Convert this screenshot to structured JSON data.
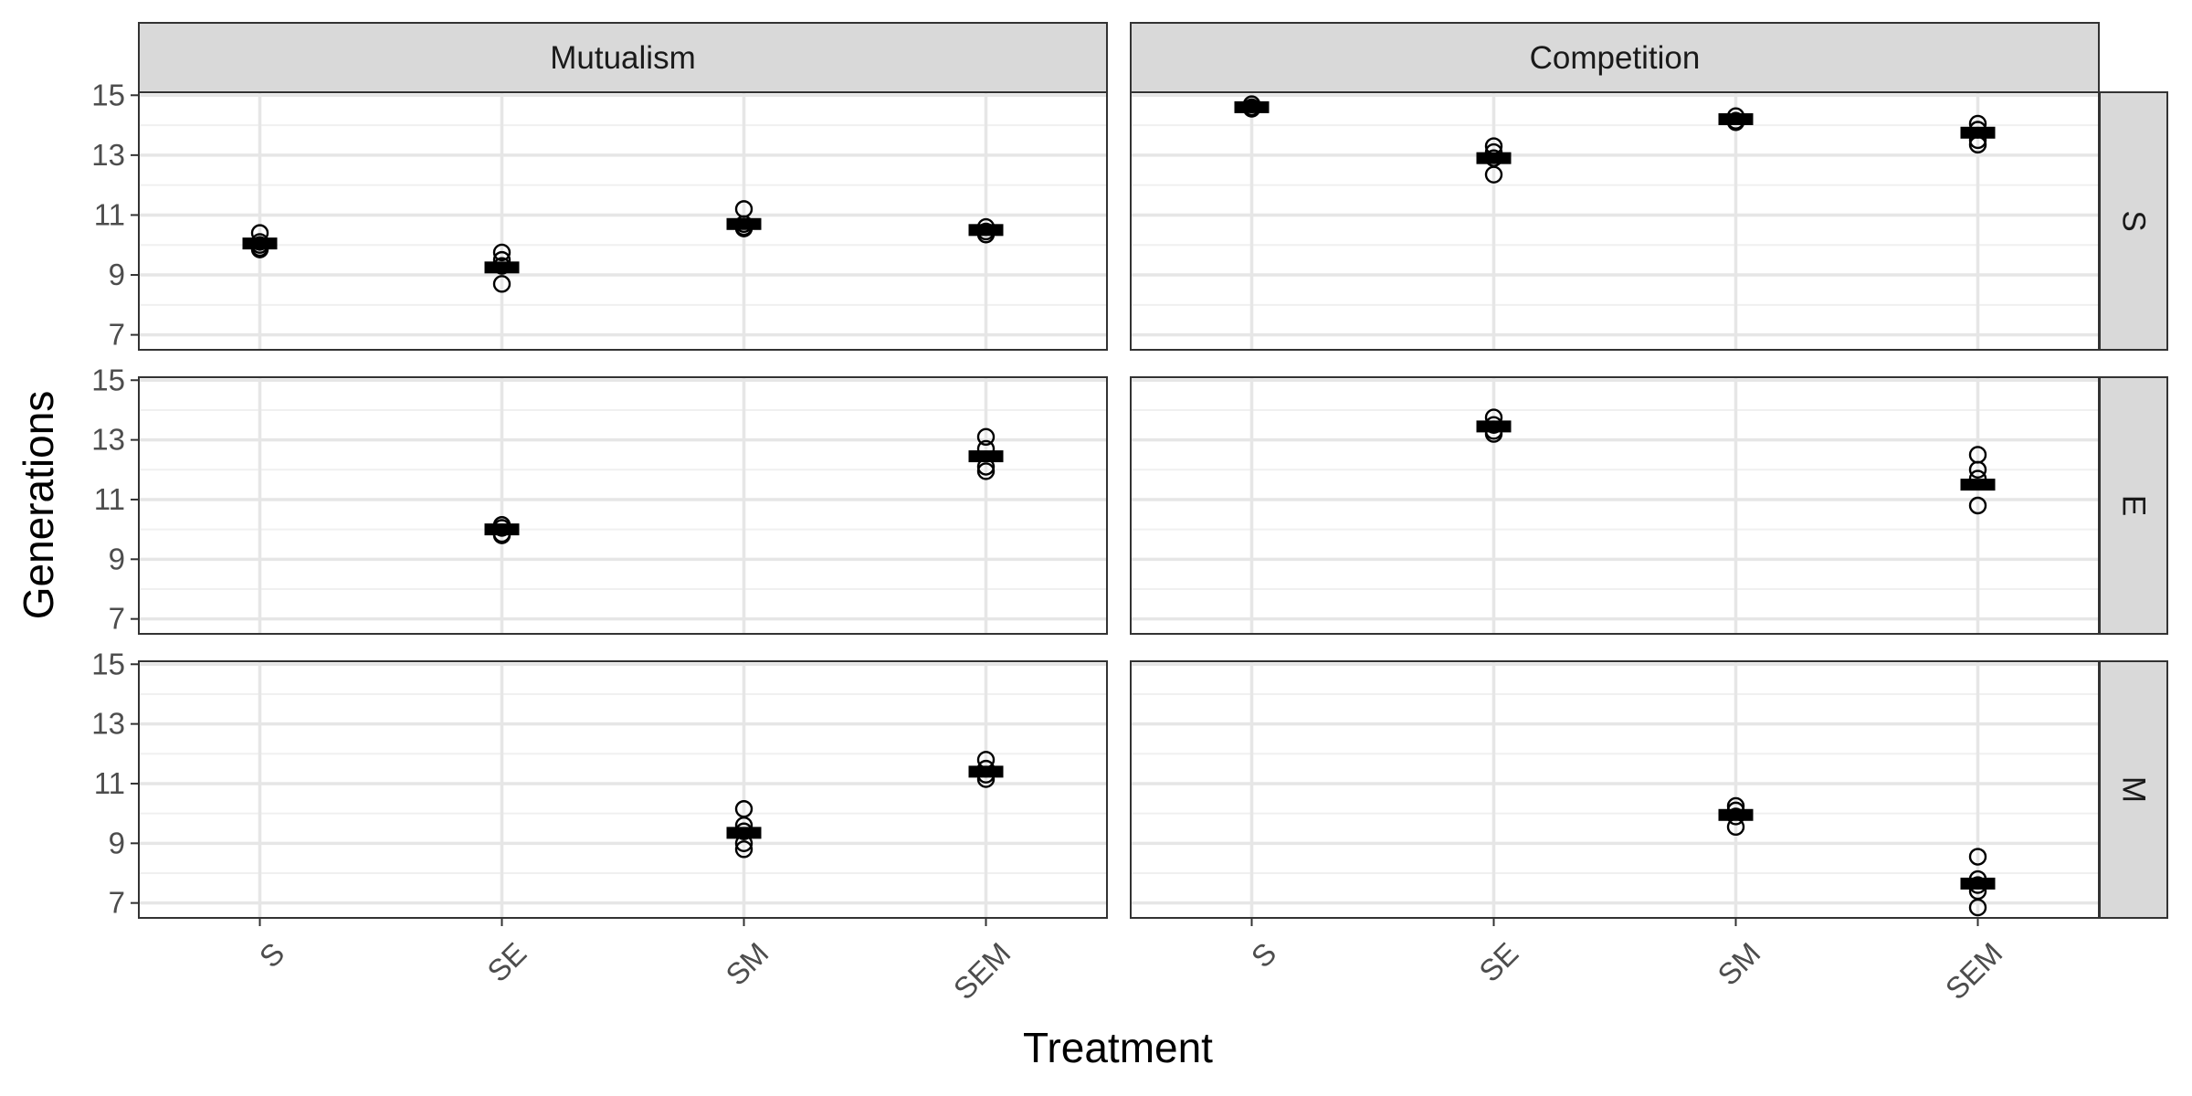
{
  "chart_data": {
    "type": "scatter",
    "ylabel": "Generations",
    "xlabel": "Treatment",
    "columns": [
      "Mutualism",
      "Competition"
    ],
    "rows": [
      "S",
      "E",
      "M"
    ],
    "categories": [
      "S",
      "SE",
      "SM",
      "SEM"
    ],
    "ylim": [
      6.5,
      15.1
    ],
    "y_ticks": [
      "7",
      "9",
      "11",
      "13",
      "15"
    ],
    "panels": [
      {
        "row": "S",
        "col": "Mutualism",
        "groups": [
          {
            "cat": "S",
            "points": [
              10.4,
              10.1,
              9.9,
              9.85,
              10.0
            ],
            "mean": 10.05
          },
          {
            "cat": "SE",
            "points": [
              9.75,
              9.5,
              9.3,
              8.7
            ],
            "mean": 9.25
          },
          {
            "cat": "SM",
            "points": [
              11.2,
              10.7,
              10.55,
              10.6
            ],
            "mean": 10.7
          },
          {
            "cat": "SEM",
            "points": [
              10.6,
              10.45,
              10.35
            ],
            "mean": 10.5
          }
        ]
      },
      {
        "row": "S",
        "col": "Competition",
        "groups": [
          {
            "cat": "S",
            "points": [
              14.7,
              14.55,
              14.6
            ],
            "mean": 14.6
          },
          {
            "cat": "SE",
            "points": [
              13.3,
              13.1,
              12.9,
              12.35
            ],
            "mean": 12.9
          },
          {
            "cat": "SM",
            "points": [
              14.3,
              14.15,
              14.1
            ],
            "mean": 14.2
          },
          {
            "cat": "SEM",
            "points": [
              14.05,
              13.85,
              13.5,
              13.35
            ],
            "mean": 13.75
          }
        ]
      },
      {
        "row": "E",
        "col": "Mutualism",
        "groups": [
          {
            "cat": "SE",
            "points": [
              10.15,
              10.05,
              9.85,
              9.8
            ],
            "mean": 10.0
          },
          {
            "cat": "SEM",
            "points": [
              13.1,
              12.7,
              12.1,
              11.95
            ],
            "mean": 12.45
          }
        ]
      },
      {
        "row": "E",
        "col": "Competition",
        "groups": [
          {
            "cat": "SE",
            "points": [
              13.75,
              13.5,
              13.3,
              13.2
            ],
            "mean": 13.45
          },
          {
            "cat": "SEM",
            "points": [
              12.5,
              12.0,
              11.7,
              10.8
            ],
            "mean": 11.5
          }
        ]
      },
      {
        "row": "M",
        "col": "Mutualism",
        "groups": [
          {
            "cat": "SM",
            "points": [
              10.15,
              9.6,
              9.4,
              9.0,
              8.8
            ],
            "mean": 9.35
          },
          {
            "cat": "SEM",
            "points": [
              11.8,
              11.5,
              11.3,
              11.15
            ],
            "mean": 11.4
          }
        ]
      },
      {
        "row": "M",
        "col": "Competition",
        "groups": [
          {
            "cat": "SM",
            "points": [
              10.25,
              10.1,
              9.9,
              9.55
            ],
            "mean": 9.95
          },
          {
            "cat": "SEM",
            "points": [
              8.55,
              7.8,
              7.6,
              7.4,
              6.85
            ],
            "mean": 7.65
          }
        ]
      }
    ]
  }
}
